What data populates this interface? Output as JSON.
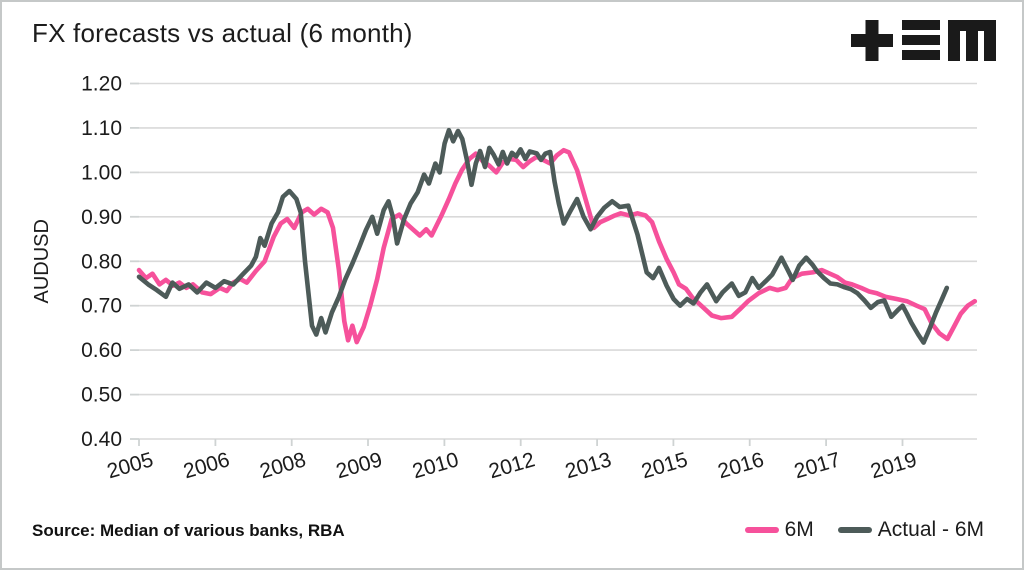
{
  "panel": {
    "title": "FX forecasts vs actual (6 month)",
    "source": "Source: Median of various banks, RBA"
  },
  "logo": {
    "name": "plus-equals-m-logo",
    "color": "#1a1a1a"
  },
  "chart_data": {
    "type": "line",
    "title": "FX forecasts vs actual (6 month)",
    "xlabel": "",
    "ylabel": "AUDUSD",
    "ylim": [
      0.4,
      1.2
    ],
    "yticks": [
      "1.20",
      "1.10",
      "1.00",
      "0.90",
      "0.80",
      "0.70",
      "0.60",
      "0.50",
      "0.40"
    ],
    "xlim": [
      2005.0,
      2020.55
    ],
    "xticks": [
      {
        "t": 2005.0,
        "label": "2005"
      },
      {
        "t": 2006.417,
        "label": "2006"
      },
      {
        "t": 2007.833,
        "label": "2008"
      },
      {
        "t": 2009.25,
        "label": "2009"
      },
      {
        "t": 2010.667,
        "label": "2010"
      },
      {
        "t": 2012.083,
        "label": "2012"
      },
      {
        "t": 2013.5,
        "label": "2013"
      },
      {
        "t": 2014.917,
        "label": "2015"
      },
      {
        "t": 2016.333,
        "label": "2016"
      },
      {
        "t": 2017.75,
        "label": "2017"
      },
      {
        "t": 2019.167,
        "label": "2019"
      }
    ],
    "grid": "horizontal-only",
    "legend_position": "bottom-right",
    "colors": {
      "grid": "#d9d9d9",
      "tick": "#cfd3d3",
      "text": "#1c1c1c"
    },
    "series": [
      {
        "name": "6M",
        "color": "#f6519b",
        "points": [
          [
            2005.0,
            0.78
          ],
          [
            2005.13,
            0.762
          ],
          [
            2005.25,
            0.772
          ],
          [
            2005.38,
            0.748
          ],
          [
            2005.5,
            0.758
          ],
          [
            2005.63,
            0.745
          ],
          [
            2005.75,
            0.752
          ],
          [
            2005.88,
            0.74
          ],
          [
            2006.0,
            0.748
          ],
          [
            2006.17,
            0.73
          ],
          [
            2006.33,
            0.726
          ],
          [
            2006.5,
            0.74
          ],
          [
            2006.63,
            0.733
          ],
          [
            2006.75,
            0.752
          ],
          [
            2006.88,
            0.76
          ],
          [
            2007.0,
            0.752
          ],
          [
            2007.17,
            0.778
          ],
          [
            2007.33,
            0.8
          ],
          [
            2007.5,
            0.855
          ],
          [
            2007.63,
            0.885
          ],
          [
            2007.75,
            0.895
          ],
          [
            2007.88,
            0.875
          ],
          [
            2008.02,
            0.91
          ],
          [
            2008.13,
            0.918
          ],
          [
            2008.25,
            0.905
          ],
          [
            2008.38,
            0.918
          ],
          [
            2008.5,
            0.91
          ],
          [
            2008.6,
            0.875
          ],
          [
            2008.71,
            0.78
          ],
          [
            2008.81,
            0.665
          ],
          [
            2008.88,
            0.622
          ],
          [
            2008.96,
            0.655
          ],
          [
            2009.04,
            0.618
          ],
          [
            2009.17,
            0.652
          ],
          [
            2009.29,
            0.7
          ],
          [
            2009.42,
            0.76
          ],
          [
            2009.54,
            0.83
          ],
          [
            2009.69,
            0.895
          ],
          [
            2009.83,
            0.905
          ],
          [
            2009.96,
            0.885
          ],
          [
            2010.08,
            0.872
          ],
          [
            2010.21,
            0.858
          ],
          [
            2010.33,
            0.872
          ],
          [
            2010.43,
            0.858
          ],
          [
            2010.62,
            0.905
          ],
          [
            2010.75,
            0.94
          ],
          [
            2010.87,
            0.975
          ],
          [
            2010.99,
            1.005
          ],
          [
            2011.13,
            1.03
          ],
          [
            2011.25,
            1.042
          ],
          [
            2011.38,
            1.025
          ],
          [
            2011.5,
            1.015
          ],
          [
            2011.63,
            1.0
          ],
          [
            2011.75,
            1.022
          ],
          [
            2011.88,
            1.03
          ],
          [
            2012.0,
            1.028
          ],
          [
            2012.13,
            1.012
          ],
          [
            2012.25,
            1.025
          ],
          [
            2012.38,
            1.035
          ],
          [
            2012.5,
            1.028
          ],
          [
            2012.63,
            1.02
          ],
          [
            2012.75,
            1.038
          ],
          [
            2012.88,
            1.05
          ],
          [
            2012.98,
            1.045
          ],
          [
            2013.13,
            1.005
          ],
          [
            2013.31,
            0.93
          ],
          [
            2013.44,
            0.875
          ],
          [
            2013.56,
            0.888
          ],
          [
            2013.69,
            0.895
          ],
          [
            2013.81,
            0.902
          ],
          [
            2013.94,
            0.908
          ],
          [
            2014.1,
            0.903
          ],
          [
            2014.25,
            0.908
          ],
          [
            2014.4,
            0.903
          ],
          [
            2014.52,
            0.888
          ],
          [
            2014.65,
            0.845
          ],
          [
            2014.79,
            0.805
          ],
          [
            2014.92,
            0.775
          ],
          [
            2015.02,
            0.748
          ],
          [
            2015.15,
            0.738
          ],
          [
            2015.27,
            0.718
          ],
          [
            2015.45,
            0.698
          ],
          [
            2015.63,
            0.678
          ],
          [
            2015.8,
            0.672
          ],
          [
            2016.0,
            0.675
          ],
          [
            2016.15,
            0.692
          ],
          [
            2016.3,
            0.71
          ],
          [
            2016.5,
            0.728
          ],
          [
            2016.7,
            0.74
          ],
          [
            2016.85,
            0.735
          ],
          [
            2017.0,
            0.74
          ],
          [
            2017.12,
            0.762
          ],
          [
            2017.3,
            0.772
          ],
          [
            2017.5,
            0.775
          ],
          [
            2017.67,
            0.78
          ],
          [
            2017.82,
            0.772
          ],
          [
            2017.95,
            0.765
          ],
          [
            2018.1,
            0.752
          ],
          [
            2018.23,
            0.748
          ],
          [
            2018.4,
            0.74
          ],
          [
            2018.55,
            0.732
          ],
          [
            2018.69,
            0.728
          ],
          [
            2018.85,
            0.72
          ],
          [
            2019.06,
            0.715
          ],
          [
            2019.25,
            0.71
          ],
          [
            2019.43,
            0.7
          ],
          [
            2019.58,
            0.692
          ],
          [
            2019.71,
            0.66
          ],
          [
            2019.85,
            0.638
          ],
          [
            2020.0,
            0.625
          ],
          [
            2020.12,
            0.652
          ],
          [
            2020.25,
            0.682
          ],
          [
            2020.38,
            0.7
          ],
          [
            2020.51,
            0.71
          ]
        ]
      },
      {
        "name": "Actual - 6M",
        "color": "#4d5b59",
        "points": [
          [
            2005.0,
            0.765
          ],
          [
            2005.17,
            0.748
          ],
          [
            2005.33,
            0.735
          ],
          [
            2005.5,
            0.72
          ],
          [
            2005.62,
            0.752
          ],
          [
            2005.75,
            0.738
          ],
          [
            2005.92,
            0.748
          ],
          [
            2006.08,
            0.73
          ],
          [
            2006.25,
            0.752
          ],
          [
            2006.42,
            0.74
          ],
          [
            2006.58,
            0.755
          ],
          [
            2006.75,
            0.748
          ],
          [
            2006.92,
            0.77
          ],
          [
            2007.08,
            0.79
          ],
          [
            2007.17,
            0.81
          ],
          [
            2007.25,
            0.852
          ],
          [
            2007.33,
            0.835
          ],
          [
            2007.46,
            0.885
          ],
          [
            2007.58,
            0.91
          ],
          [
            2007.67,
            0.945
          ],
          [
            2007.79,
            0.958
          ],
          [
            2007.92,
            0.94
          ],
          [
            2008.0,
            0.91
          ],
          [
            2008.08,
            0.8
          ],
          [
            2008.21,
            0.655
          ],
          [
            2008.29,
            0.635
          ],
          [
            2008.38,
            0.672
          ],
          [
            2008.46,
            0.64
          ],
          [
            2008.58,
            0.685
          ],
          [
            2008.71,
            0.72
          ],
          [
            2008.83,
            0.76
          ],
          [
            2008.96,
            0.795
          ],
          [
            2009.08,
            0.83
          ],
          [
            2009.21,
            0.87
          ],
          [
            2009.33,
            0.9
          ],
          [
            2009.42,
            0.862
          ],
          [
            2009.54,
            0.915
          ],
          [
            2009.63,
            0.935
          ],
          [
            2009.71,
            0.9
          ],
          [
            2009.79,
            0.84
          ],
          [
            2009.92,
            0.895
          ],
          [
            2010.04,
            0.93
          ],
          [
            2010.17,
            0.955
          ],
          [
            2010.29,
            0.995
          ],
          [
            2010.38,
            0.975
          ],
          [
            2010.5,
            1.02
          ],
          [
            2010.58,
            1.0
          ],
          [
            2010.67,
            1.065
          ],
          [
            2010.75,
            1.095
          ],
          [
            2010.83,
            1.07
          ],
          [
            2010.92,
            1.093
          ],
          [
            2011.0,
            1.075
          ],
          [
            2011.08,
            1.03
          ],
          [
            2011.17,
            0.972
          ],
          [
            2011.25,
            1.02
          ],
          [
            2011.33,
            1.048
          ],
          [
            2011.42,
            1.012
          ],
          [
            2011.5,
            1.055
          ],
          [
            2011.58,
            1.04
          ],
          [
            2011.67,
            1.018
          ],
          [
            2011.75,
            1.046
          ],
          [
            2011.83,
            1.02
          ],
          [
            2011.92,
            1.044
          ],
          [
            2012.0,
            1.036
          ],
          [
            2012.08,
            1.052
          ],
          [
            2012.17,
            1.03
          ],
          [
            2012.25,
            1.047
          ],
          [
            2012.38,
            1.043
          ],
          [
            2012.46,
            1.028
          ],
          [
            2012.54,
            1.042
          ],
          [
            2012.63,
            1.046
          ],
          [
            2012.71,
            0.98
          ],
          [
            2012.79,
            0.93
          ],
          [
            2012.88,
            0.885
          ],
          [
            2013.0,
            0.912
          ],
          [
            2013.13,
            0.94
          ],
          [
            2013.25,
            0.9
          ],
          [
            2013.38,
            0.872
          ],
          [
            2013.5,
            0.9
          ],
          [
            2013.63,
            0.92
          ],
          [
            2013.78,
            0.935
          ],
          [
            2013.92,
            0.922
          ],
          [
            2014.08,
            0.925
          ],
          [
            2014.25,
            0.86
          ],
          [
            2014.42,
            0.775
          ],
          [
            2014.54,
            0.762
          ],
          [
            2014.65,
            0.785
          ],
          [
            2014.79,
            0.745
          ],
          [
            2014.92,
            0.715
          ],
          [
            2015.04,
            0.7
          ],
          [
            2015.17,
            0.715
          ],
          [
            2015.29,
            0.705
          ],
          [
            2015.42,
            0.73
          ],
          [
            2015.54,
            0.748
          ],
          [
            2015.71,
            0.71
          ],
          [
            2015.83,
            0.73
          ],
          [
            2016.0,
            0.75
          ],
          [
            2016.13,
            0.722
          ],
          [
            2016.25,
            0.73
          ],
          [
            2016.38,
            0.762
          ],
          [
            2016.5,
            0.74
          ],
          [
            2016.63,
            0.755
          ],
          [
            2016.75,
            0.77
          ],
          [
            2016.92,
            0.808
          ],
          [
            2017.04,
            0.78
          ],
          [
            2017.13,
            0.758
          ],
          [
            2017.25,
            0.79
          ],
          [
            2017.38,
            0.808
          ],
          [
            2017.5,
            0.792
          ],
          [
            2017.58,
            0.778
          ],
          [
            2017.71,
            0.762
          ],
          [
            2017.83,
            0.75
          ],
          [
            2017.96,
            0.748
          ],
          [
            2018.08,
            0.742
          ],
          [
            2018.21,
            0.737
          ],
          [
            2018.33,
            0.728
          ],
          [
            2018.46,
            0.712
          ],
          [
            2018.58,
            0.695
          ],
          [
            2018.71,
            0.708
          ],
          [
            2018.83,
            0.712
          ],
          [
            2018.96,
            0.675
          ],
          [
            2019.08,
            0.69
          ],
          [
            2019.17,
            0.7
          ],
          [
            2019.25,
            0.682
          ],
          [
            2019.33,
            0.662
          ],
          [
            2019.46,
            0.635
          ],
          [
            2019.56,
            0.617
          ],
          [
            2019.67,
            0.648
          ],
          [
            2019.79,
            0.685
          ],
          [
            2019.9,
            0.715
          ],
          [
            2019.99,
            0.74
          ]
        ]
      }
    ]
  }
}
